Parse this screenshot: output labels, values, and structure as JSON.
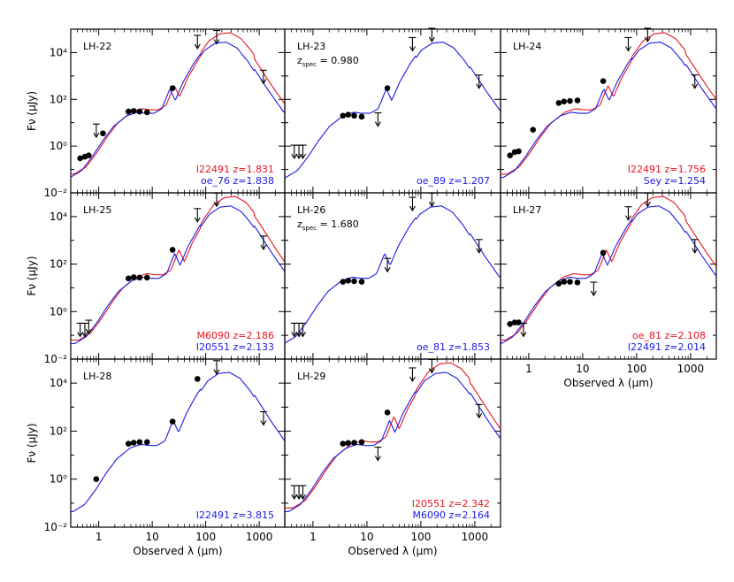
{
  "chart_data": {
    "type": "line",
    "title": "",
    "xlabel": "Observed λ (μm)",
    "ylabel": "Fν (μJy)",
    "x_scale": "log",
    "y_scale": "log",
    "xlim": [
      0.3,
      3000
    ],
    "ylim": [
      0.01,
      100000
    ],
    "x_tick_labels": [
      "1",
      "10",
      "100",
      "1000"
    ],
    "x_tick_values": [
      1,
      10,
      100,
      1000
    ],
    "y_tick_labels": [
      "10⁻²",
      "10⁰",
      "10²",
      "10⁴"
    ],
    "y_tick_values": [
      0.01,
      1,
      100,
      10000
    ],
    "colors": {
      "red": "#e8141e",
      "blue": "#1a1ae6",
      "black": "#000000"
    },
    "panels": [
      {
        "label": "LH-22",
        "z_spec": "",
        "fits": [
          {
            "name": "I22491 z=1.831",
            "color": "red"
          },
          {
            "name": "oe_76 z=1.838",
            "color": "blue"
          }
        ],
        "photometry": [
          [
            0.45,
            0.3
          ],
          [
            0.55,
            0.35
          ],
          [
            0.65,
            0.4
          ],
          [
            1.2,
            3.5
          ],
          [
            3.6,
            30
          ],
          [
            4.5,
            32
          ],
          [
            5.8,
            30
          ],
          [
            8,
            28
          ],
          [
            24,
            300
          ]
        ],
        "upper_limits": [
          [
            0.9,
            4
          ],
          [
            70,
            25000
          ],
          [
            160,
            40000
          ],
          [
            1200,
            800
          ]
        ]
      },
      {
        "label": "LH-23",
        "z_spec": "0.980",
        "fits": [
          {
            "name": "oe_89 z=1.207",
            "color": "blue"
          }
        ],
        "photometry": [
          [
            3.6,
            20
          ],
          [
            4.5,
            22
          ],
          [
            5.8,
            20
          ],
          [
            8,
            18
          ],
          [
            24,
            300
          ]
        ],
        "upper_limits": [
          [
            0.45,
            0.5
          ],
          [
            0.55,
            0.5
          ],
          [
            0.65,
            0.5
          ],
          [
            16,
            12
          ],
          [
            70,
            20000
          ],
          [
            160,
            50000
          ],
          [
            1200,
            500
          ]
        ]
      },
      {
        "label": "LH-24",
        "z_spec": "",
        "fits": [
          {
            "name": "I22491 z=1.756",
            "color": "red"
          },
          {
            "name": "Sey z=1.254",
            "color": "blue"
          }
        ],
        "photometry": [
          [
            0.45,
            0.4
          ],
          [
            0.55,
            0.55
          ],
          [
            0.65,
            0.6
          ],
          [
            1.2,
            5
          ],
          [
            3.6,
            70
          ],
          [
            4.5,
            80
          ],
          [
            5.8,
            85
          ],
          [
            8,
            90
          ],
          [
            24,
            600
          ]
        ],
        "upper_limits": [
          [
            70,
            20000
          ],
          [
            160,
            50000
          ],
          [
            1200,
            500
          ]
        ]
      },
      {
        "label": "LH-25",
        "z_spec": "",
        "fits": [
          {
            "name": "M6090 z=2.186",
            "color": "red"
          },
          {
            "name": "I20551 z=2.133",
            "color": "blue"
          }
        ],
        "photometry": [
          [
            3.6,
            25
          ],
          [
            4.5,
            28
          ],
          [
            5.8,
            27
          ],
          [
            8,
            27
          ],
          [
            24,
            400
          ]
        ],
        "upper_limits": [
          [
            0.45,
            0.15
          ],
          [
            0.55,
            0.15
          ],
          [
            0.65,
            0.2
          ],
          [
            70,
            10000
          ],
          [
            160,
            45000
          ],
          [
            1200,
            700
          ]
        ]
      },
      {
        "label": "LH-26",
        "z_spec": "1.680",
        "fits": [
          {
            "name": "oe_81 z=1.853",
            "color": "blue"
          }
        ],
        "photometry": [
          [
            3.6,
            18
          ],
          [
            4.5,
            20
          ],
          [
            5.8,
            19
          ],
          [
            8,
            18
          ]
        ],
        "upper_limits": [
          [
            0.45,
            0.15
          ],
          [
            0.55,
            0.15
          ],
          [
            0.65,
            0.15
          ],
          [
            24,
            80
          ],
          [
            70,
            30000
          ],
          [
            160,
            45000
          ],
          [
            1200,
            500
          ]
        ]
      },
      {
        "label": "LH-27",
        "z_spec": "",
        "fits": [
          {
            "name": "oe_81 z=2.108",
            "color": "red"
          },
          {
            "name": "I22491 z=2.014",
            "color": "blue"
          }
        ],
        "photometry": [
          [
            0.45,
            0.3
          ],
          [
            0.55,
            0.35
          ],
          [
            0.65,
            0.35
          ],
          [
            3.6,
            15
          ],
          [
            4.5,
            18
          ],
          [
            5.8,
            18
          ],
          [
            8,
            17
          ],
          [
            24,
            300
          ]
        ],
        "upper_limits": [
          [
            0.8,
            0.15
          ],
          [
            16,
            8
          ],
          [
            70,
            12000
          ],
          [
            160,
            45000
          ],
          [
            1200,
            500
          ]
        ]
      },
      {
        "label": "LH-28",
        "z_spec": "",
        "fits": [
          {
            "name": "I22491 z=3.815",
            "color": "blue"
          }
        ],
        "photometry": [
          [
            0.9,
            1
          ],
          [
            3.6,
            30
          ],
          [
            4.5,
            33
          ],
          [
            5.8,
            35
          ],
          [
            8,
            35
          ],
          [
            24,
            250
          ],
          [
            70,
            15000
          ]
        ],
        "upper_limits": [
          [
            160,
            40000
          ],
          [
            1200,
            300
          ]
        ]
      },
      {
        "label": "LH-29",
        "z_spec": "",
        "fits": [
          {
            "name": "I20551 z=2.342",
            "color": "red"
          },
          {
            "name": "M6090 z=2.164",
            "color": "blue"
          }
        ],
        "photometry": [
          [
            3.6,
            30
          ],
          [
            4.5,
            32
          ],
          [
            5.8,
            33
          ],
          [
            8,
            35
          ],
          [
            24,
            600
          ]
        ],
        "upper_limits": [
          [
            0.45,
            0.25
          ],
          [
            0.55,
            0.25
          ],
          [
            0.65,
            0.25
          ],
          [
            16,
            10
          ],
          [
            70,
            20000
          ],
          [
            160,
            45000
          ],
          [
            1200,
            600
          ]
        ]
      }
    ]
  }
}
